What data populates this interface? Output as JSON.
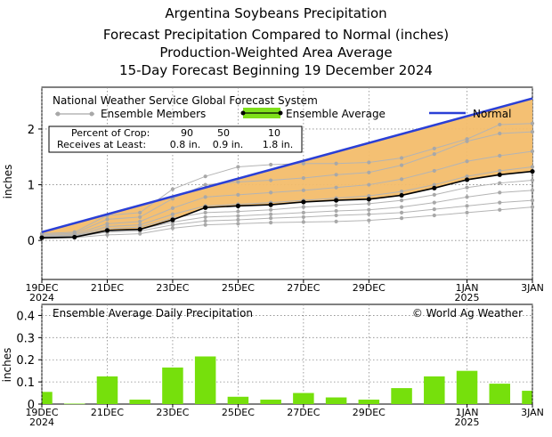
{
  "titles": {
    "line1": "Argentina Soybeans Precipitation",
    "line2": "Forecast Precipitation Compared to Normal (inches)",
    "line3": "Production-Weighted Area Average",
    "line4": "15-Day Forecast Beginning 19 December 2024"
  },
  "chart_data": [
    {
      "type": "line",
      "title": "Forecast Precipitation Compared to Normal (inches)",
      "ylabel": "inches",
      "ylim": [
        -0.7,
        2.75
      ],
      "yticks": [
        0,
        1,
        2
      ],
      "x_days": [
        0,
        1,
        2,
        3,
        4,
        5,
        6,
        7,
        8,
        9,
        10,
        11,
        12,
        13,
        14,
        15
      ],
      "xtick_days": [
        0,
        2,
        4,
        6,
        8,
        10,
        13,
        15
      ],
      "xtick_labels": [
        "19DEC",
        "21DEC",
        "23DEC",
        "25DEC",
        "27DEC",
        "29DEC",
        "1JAN",
        "3JAN"
      ],
      "xtick_sublabels": [
        "2024",
        "",
        "",
        "",
        "",
        "",
        "2025",
        ""
      ],
      "legend": {
        "title": "National Weather Service Global Forecast System",
        "members_label": "Ensemble Members",
        "average_label": "Ensemble Average",
        "normal_label": "Normal"
      },
      "percentile_table": {
        "row1_label": "Percent of Crop:",
        "row2_label": "Receives at Least:",
        "percents": [
          "90",
          "50",
          "10"
        ],
        "amounts": [
          "0.8 in.",
          "0.9 in.",
          "1.8 in."
        ]
      },
      "normal": {
        "x": [
          0,
          15
        ],
        "y": [
          0.15,
          2.55
        ]
      },
      "ensemble_average": [
        0.05,
        0.06,
        0.18,
        0.2,
        0.37,
        0.59,
        0.62,
        0.64,
        0.69,
        0.72,
        0.74,
        0.81,
        0.94,
        1.09,
        1.18,
        1.24
      ],
      "ensemble_members": [
        [
          0.03,
          0.05,
          0.1,
          0.12,
          0.22,
          0.28,
          0.3,
          0.32,
          0.33,
          0.34,
          0.36,
          0.4,
          0.45,
          0.5,
          0.55,
          0.6
        ],
        [
          0.04,
          0.06,
          0.15,
          0.17,
          0.28,
          0.35,
          0.37,
          0.4,
          0.42,
          0.45,
          0.47,
          0.5,
          0.56,
          0.62,
          0.68,
          0.72
        ],
        [
          0.05,
          0.07,
          0.18,
          0.2,
          0.33,
          0.42,
          0.44,
          0.47,
          0.5,
          0.53,
          0.55,
          0.6,
          0.68,
          0.78,
          0.86,
          0.9
        ],
        [
          0.06,
          0.08,
          0.21,
          0.24,
          0.4,
          0.5,
          0.52,
          0.55,
          0.6,
          0.63,
          0.66,
          0.72,
          0.82,
          0.95,
          1.03,
          1.08
        ],
        [
          0.07,
          0.09,
          0.25,
          0.28,
          0.47,
          0.62,
          0.65,
          0.68,
          0.72,
          0.76,
          0.8,
          0.88,
          1.0,
          1.15,
          1.25,
          1.32
        ],
        [
          0.08,
          0.11,
          0.3,
          0.34,
          0.58,
          0.78,
          0.82,
          0.86,
          0.9,
          0.95,
          1.0,
          1.1,
          1.25,
          1.42,
          1.52,
          1.6
        ],
        [
          0.1,
          0.13,
          0.38,
          0.42,
          0.75,
          1.0,
          1.05,
          1.08,
          1.12,
          1.18,
          1.22,
          1.35,
          1.55,
          1.78,
          1.92,
          1.95
        ],
        [
          0.12,
          0.15,
          0.45,
          0.5,
          0.92,
          1.15,
          1.32,
          1.36,
          1.38,
          1.38,
          1.4,
          1.48,
          1.65,
          1.82,
          2.08,
          2.1
        ]
      ]
    },
    {
      "type": "bar",
      "title": "Ensemble Average Daily Precipitation",
      "credit": "© World Ag Weather",
      "ylabel": "inches",
      "ylim": [
        0,
        0.45
      ],
      "yticks": [
        0,
        0.1,
        0.2,
        0.3,
        0.4
      ],
      "ytick_labels": [
        "0",
        "0.1",
        "0.2",
        "0.3",
        "0.4"
      ],
      "values": [
        0.055,
        0.002,
        0.125,
        0.02,
        0.165,
        0.215,
        0.033,
        0.02,
        0.05,
        0.03,
        0.02,
        0.072,
        0.125,
        0.15,
        0.092,
        0.06
      ]
    }
  ]
}
